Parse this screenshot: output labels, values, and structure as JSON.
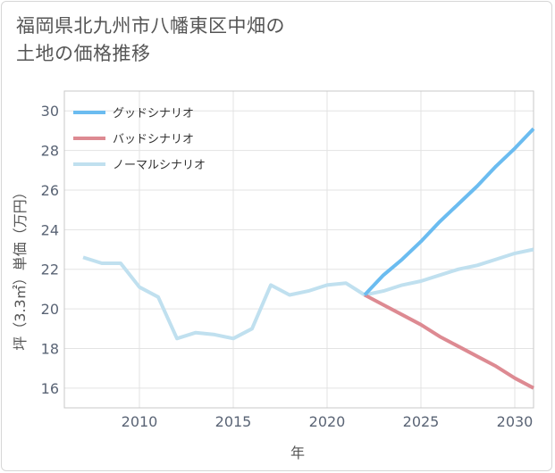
{
  "title": {
    "line1": "福岡県北九州市八幡東区中畑の",
    "line2": "土地の価格推移"
  },
  "chart_data": {
    "type": "line",
    "xlabel": "年",
    "ylabel": "坪（3.3㎡）単価（万円）",
    "xlim": [
      2006,
      2031
    ],
    "ylim": [
      15,
      31
    ],
    "x_ticks": [
      2010,
      2015,
      2020,
      2025,
      2030
    ],
    "y_ticks": [
      16,
      18,
      20,
      22,
      24,
      26,
      28,
      30
    ],
    "legend_position": "top-left",
    "series": [
      {
        "name": "グッドシナリオ",
        "color": "#6bbcf0",
        "x": [
          2022,
          2023,
          2024,
          2025,
          2026,
          2027,
          2028,
          2029,
          2030,
          2031
        ],
        "y": [
          20.7,
          21.7,
          22.5,
          23.4,
          24.4,
          25.3,
          26.2,
          27.2,
          28.1,
          29.1
        ]
      },
      {
        "name": "バッドシナリオ",
        "color": "#dd8a92",
        "x": [
          2022,
          2023,
          2024,
          2025,
          2026,
          2027,
          2028,
          2029,
          2030,
          2031
        ],
        "y": [
          20.7,
          20.2,
          19.7,
          19.2,
          18.6,
          18.1,
          17.6,
          17.1,
          16.5,
          16.0
        ]
      },
      {
        "name": "ノーマルシナリオ",
        "color": "#c0e0ef",
        "x": [
          2007,
          2008,
          2009,
          2010,
          2011,
          2012,
          2013,
          2014,
          2015,
          2016,
          2017,
          2018,
          2019,
          2020,
          2021,
          2022,
          2023,
          2024,
          2025,
          2026,
          2027,
          2028,
          2029,
          2030,
          2031
        ],
        "y": [
          22.6,
          22.3,
          22.3,
          21.1,
          20.6,
          18.5,
          18.8,
          18.7,
          18.5,
          19.0,
          21.2,
          20.7,
          20.9,
          21.2,
          21.3,
          20.7,
          20.9,
          21.2,
          21.4,
          21.7,
          22.0,
          22.2,
          22.5,
          22.8,
          23.0
        ]
      }
    ]
  }
}
